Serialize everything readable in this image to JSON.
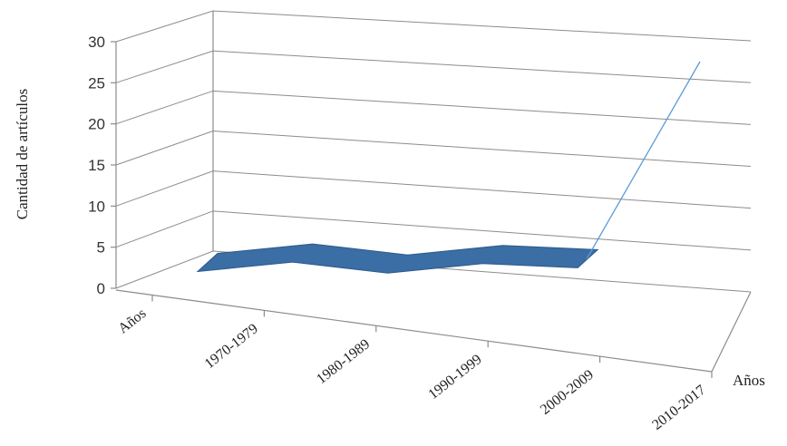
{
  "chart_data": {
    "type": "area",
    "view": "3d-perspective",
    "categories": [
      "Años",
      "1970-1979",
      "1980-1989",
      "1990-1999",
      "2000-2009",
      "2010-2017"
    ],
    "values": [
      1,
      3,
      2,
      4,
      4,
      28
    ],
    "ylabel": "Cantidad de artículos",
    "xlabel": "Años",
    "ylim": [
      0,
      30
    ],
    "yticks": [
      0,
      5,
      10,
      15,
      20,
      25,
      30
    ],
    "grid": true,
    "legend": "none",
    "series_color": "#3a6ea5",
    "line_color": "#5b9bd5"
  }
}
